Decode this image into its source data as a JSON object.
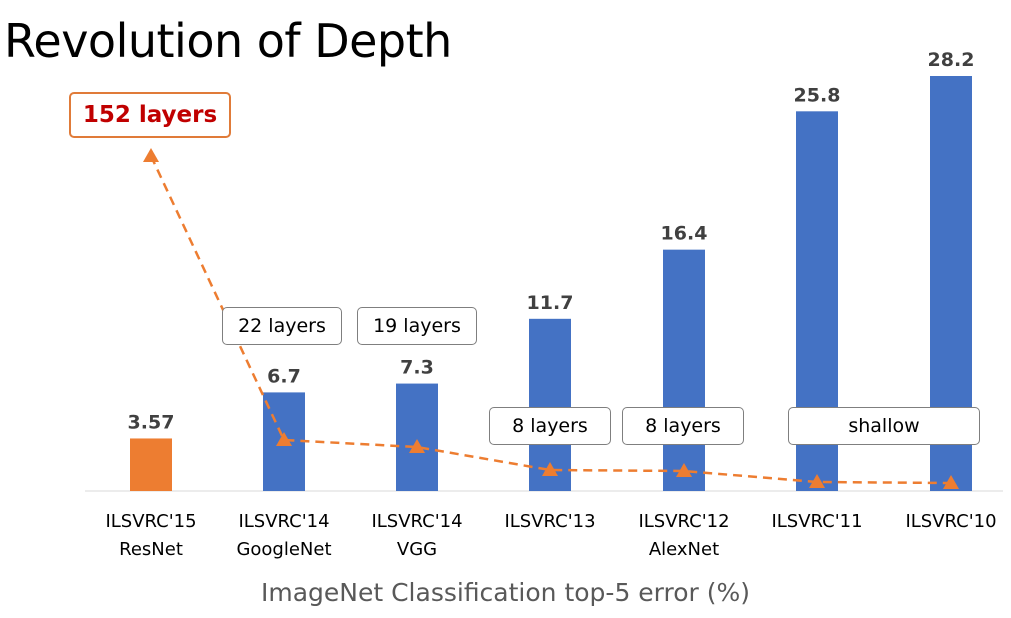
{
  "title": "Revolution of Depth",
  "chart_data": {
    "type": "bar",
    "title": "Revolution of Depth",
    "xlabel": "ImageNet Classification top-5 error (%)",
    "ylabel": "",
    "ylim": [
      0,
      30
    ],
    "grid": false,
    "categories": [
      [
        "ILSVRC'15",
        "ResNet"
      ],
      [
        "ILSVRC'14",
        "GoogleNet"
      ],
      [
        "ILSVRC'14",
        "VGG"
      ],
      [
        "ILSVRC'13"
      ],
      [
        "ILSVRC'12",
        "AlexNet"
      ],
      [
        "ILSVRC'11"
      ],
      [
        "ILSVRC'10"
      ]
    ],
    "values": [
      3.57,
      6.7,
      7.3,
      11.7,
      16.4,
      25.8,
      28.2
    ],
    "value_labels": [
      "3.57",
      "6.7",
      "7.3",
      "11.7",
      "16.4",
      "25.8",
      "28.2"
    ],
    "bar_colors": [
      "#ed7d31",
      "#4472c4",
      "#4472c4",
      "#4472c4",
      "#4472c4",
      "#4472c4",
      "#4472c4"
    ],
    "layers_labels": [
      "152 layers",
      "22 layers",
      "19 layers",
      "8 layers",
      "8 layers",
      "shallow",
      ""
    ],
    "layers_line": {
      "style": "dashed",
      "marker": "triangle",
      "color": "#ed7d31",
      "relative_depth": [
        152,
        22,
        19,
        8,
        8,
        0,
        0
      ]
    }
  },
  "colors": {
    "bar_highlight": "#ed7d31",
    "bar": "#4472c4",
    "line": "#ed7d31",
    "highlight_text": "#c00000"
  }
}
